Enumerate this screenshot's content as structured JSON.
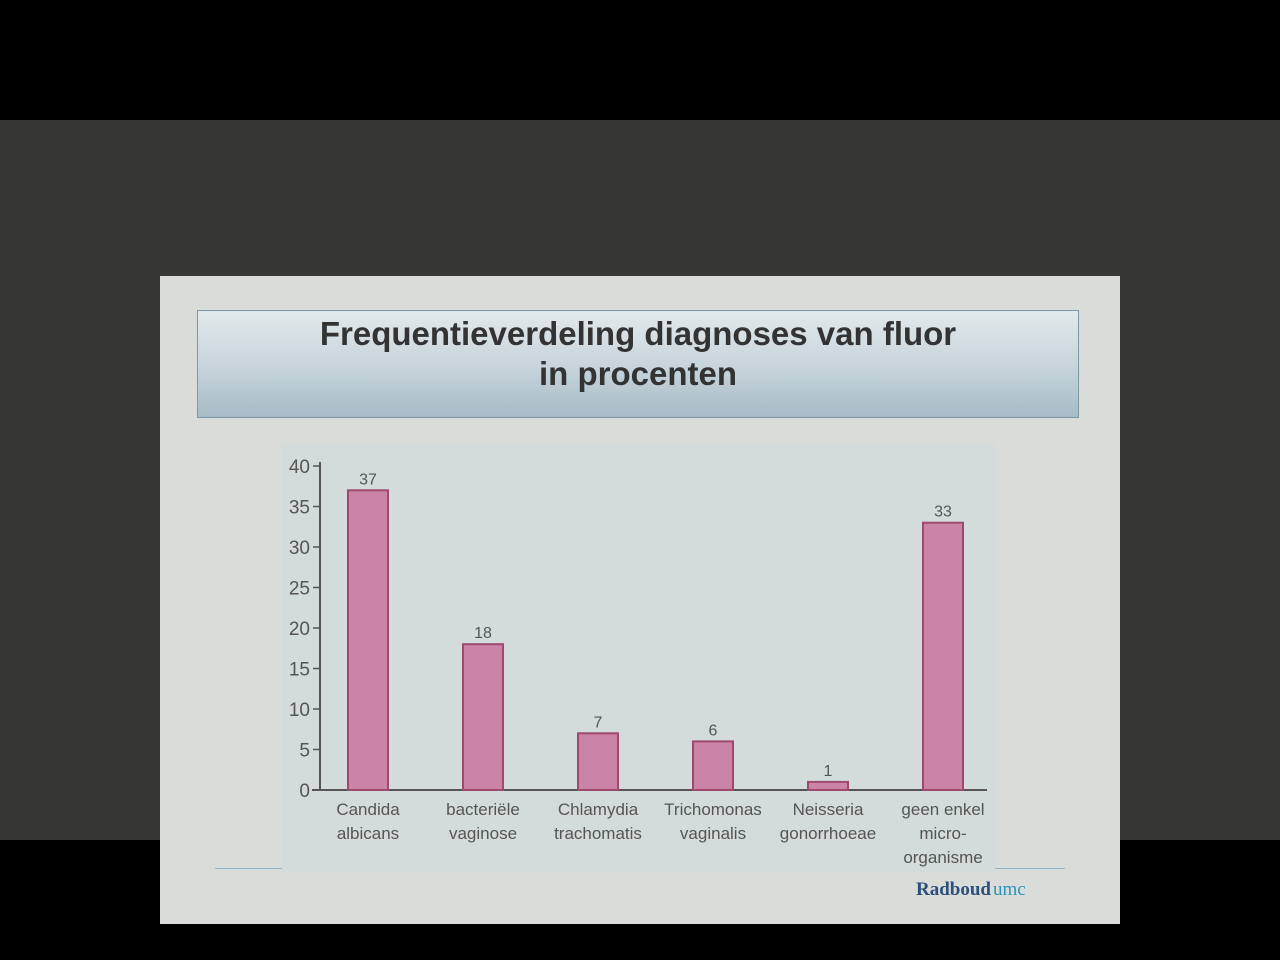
{
  "slide": {
    "title_line1": "Frequentieverdeling diagnoses van fluor",
    "title_line2": "in procenten"
  },
  "logo": {
    "main": "Radboud",
    "sub": "umc"
  },
  "colors": {
    "bar_fill": "#cc84a6",
    "bar_stroke": "#9e4a6e",
    "axis": "#555555"
  },
  "chart_data": {
    "type": "bar",
    "categories": [
      [
        "Candida",
        "albicans"
      ],
      [
        "bacteriële",
        "vaginose"
      ],
      [
        "Chlamydia",
        "trachomatis"
      ],
      [
        "Trichomonas",
        "vaginalis"
      ],
      [
        "Neisseria",
        "gonorrhoeae"
      ],
      [
        "geen enkel",
        "micro-",
        "organisme"
      ]
    ],
    "values": [
      37,
      18,
      7,
      6,
      1,
      33
    ],
    "data_labels": [
      "37",
      "18",
      "7",
      "6",
      "1",
      "33"
    ],
    "ylim": [
      0,
      40
    ],
    "yticks": [
      0,
      5,
      10,
      15,
      20,
      25,
      30,
      35,
      40
    ],
    "grid": false,
    "legend": "none"
  }
}
